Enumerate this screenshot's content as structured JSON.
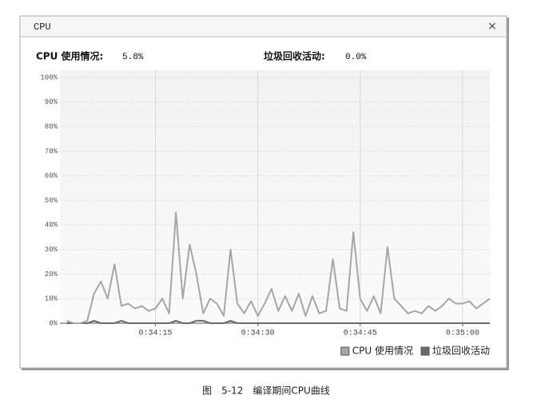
{
  "panel_title": "CPU",
  "close_label": "×",
  "stats": [
    {
      "label": "CPU 使用情况:",
      "value": "5.8%"
    },
    {
      "label": "垃圾回收活动:",
      "value": "0.0%"
    }
  ],
  "caption": "图　5-12　编译期间CPU曲线",
  "chart_data": {
    "type": "line",
    "x": [
      "0:34:02",
      "0:34:03",
      "0:34:04",
      "0:34:05",
      "0:34:06",
      "0:34:07",
      "0:34:08",
      "0:34:09",
      "0:34:10",
      "0:34:11",
      "0:34:12",
      "0:34:13",
      "0:34:14",
      "0:34:15",
      "0:34:16",
      "0:34:17",
      "0:34:18",
      "0:34:19",
      "0:34:20",
      "0:34:21",
      "0:34:22",
      "0:34:23",
      "0:34:24",
      "0:34:25",
      "0:34:26",
      "0:34:27",
      "0:34:28",
      "0:34:29",
      "0:34:30",
      "0:34:31",
      "0:34:32",
      "0:34:33",
      "0:34:34",
      "0:34:35",
      "0:34:36",
      "0:34:37",
      "0:34:38",
      "0:34:39",
      "0:34:40",
      "0:34:41",
      "0:34:42",
      "0:34:43",
      "0:34:44",
      "0:34:45",
      "0:34:46",
      "0:34:47",
      "0:34:48",
      "0:34:49",
      "0:34:50",
      "0:34:51",
      "0:34:52",
      "0:34:53",
      "0:34:54",
      "0:34:55",
      "0:34:56",
      "0:34:57",
      "0:34:58",
      "0:34:59",
      "0:35:00",
      "0:35:01",
      "0:35:02",
      "0:35:03",
      "0:35:04"
    ],
    "series": [
      {
        "name": "CPU 使用情况",
        "color": "#a6a6a6",
        "values": [
          1,
          0,
          0,
          1,
          12,
          17,
          10,
          24,
          7,
          8,
          6,
          7,
          5,
          6,
          10,
          4,
          45,
          10,
          32,
          20,
          4,
          10,
          8,
          3,
          30,
          8,
          4,
          9,
          3,
          8,
          14,
          5,
          11,
          5,
          12,
          3,
          11,
          4,
          5,
          26,
          6,
          5,
          37,
          10,
          5,
          11,
          4,
          31,
          10,
          7,
          4,
          5,
          4,
          7,
          5,
          7,
          10,
          8,
          8,
          9,
          6,
          8,
          10
        ]
      },
      {
        "name": "垃圾回收活动",
        "color": "#6a6a6a",
        "values": [
          0,
          0,
          0,
          0,
          1,
          0,
          0,
          0,
          1,
          0,
          0,
          0,
          0,
          0,
          0,
          0,
          1,
          0,
          0,
          1,
          1,
          0,
          0,
          0,
          1,
          0,
          0,
          0,
          0,
          0,
          0,
          0,
          0,
          0,
          0,
          0,
          0,
          0,
          0,
          0,
          0,
          0,
          0,
          0,
          0,
          0,
          0,
          0,
          0,
          0,
          0,
          0,
          0,
          0,
          0,
          0,
          0,
          0,
          0,
          0,
          0,
          0,
          0
        ]
      }
    ],
    "xlim": [
      "0:34:01",
      "0:35:04"
    ],
    "xticks": [
      "0:34:15",
      "0:34:30",
      "0:34:45",
      "0:35:00"
    ],
    "ylim": [
      0,
      100
    ],
    "yticks": [
      {
        "value": 0,
        "label": "0%"
      },
      {
        "value": 10,
        "label": "10%"
      },
      {
        "value": 20,
        "label": "20%"
      },
      {
        "value": 30,
        "label": "30%"
      },
      {
        "value": 40,
        "label": "40%"
      },
      {
        "value": 50,
        "label": "50%"
      },
      {
        "value": 60,
        "label": "60%"
      },
      {
        "value": 70,
        "label": "70%"
      },
      {
        "value": 80,
        "label": "80%"
      },
      {
        "value": 90,
        "label": "90%"
      },
      {
        "value": 100,
        "label": "100%"
      }
    ],
    "grid": true,
    "legend": "bottom-right"
  }
}
